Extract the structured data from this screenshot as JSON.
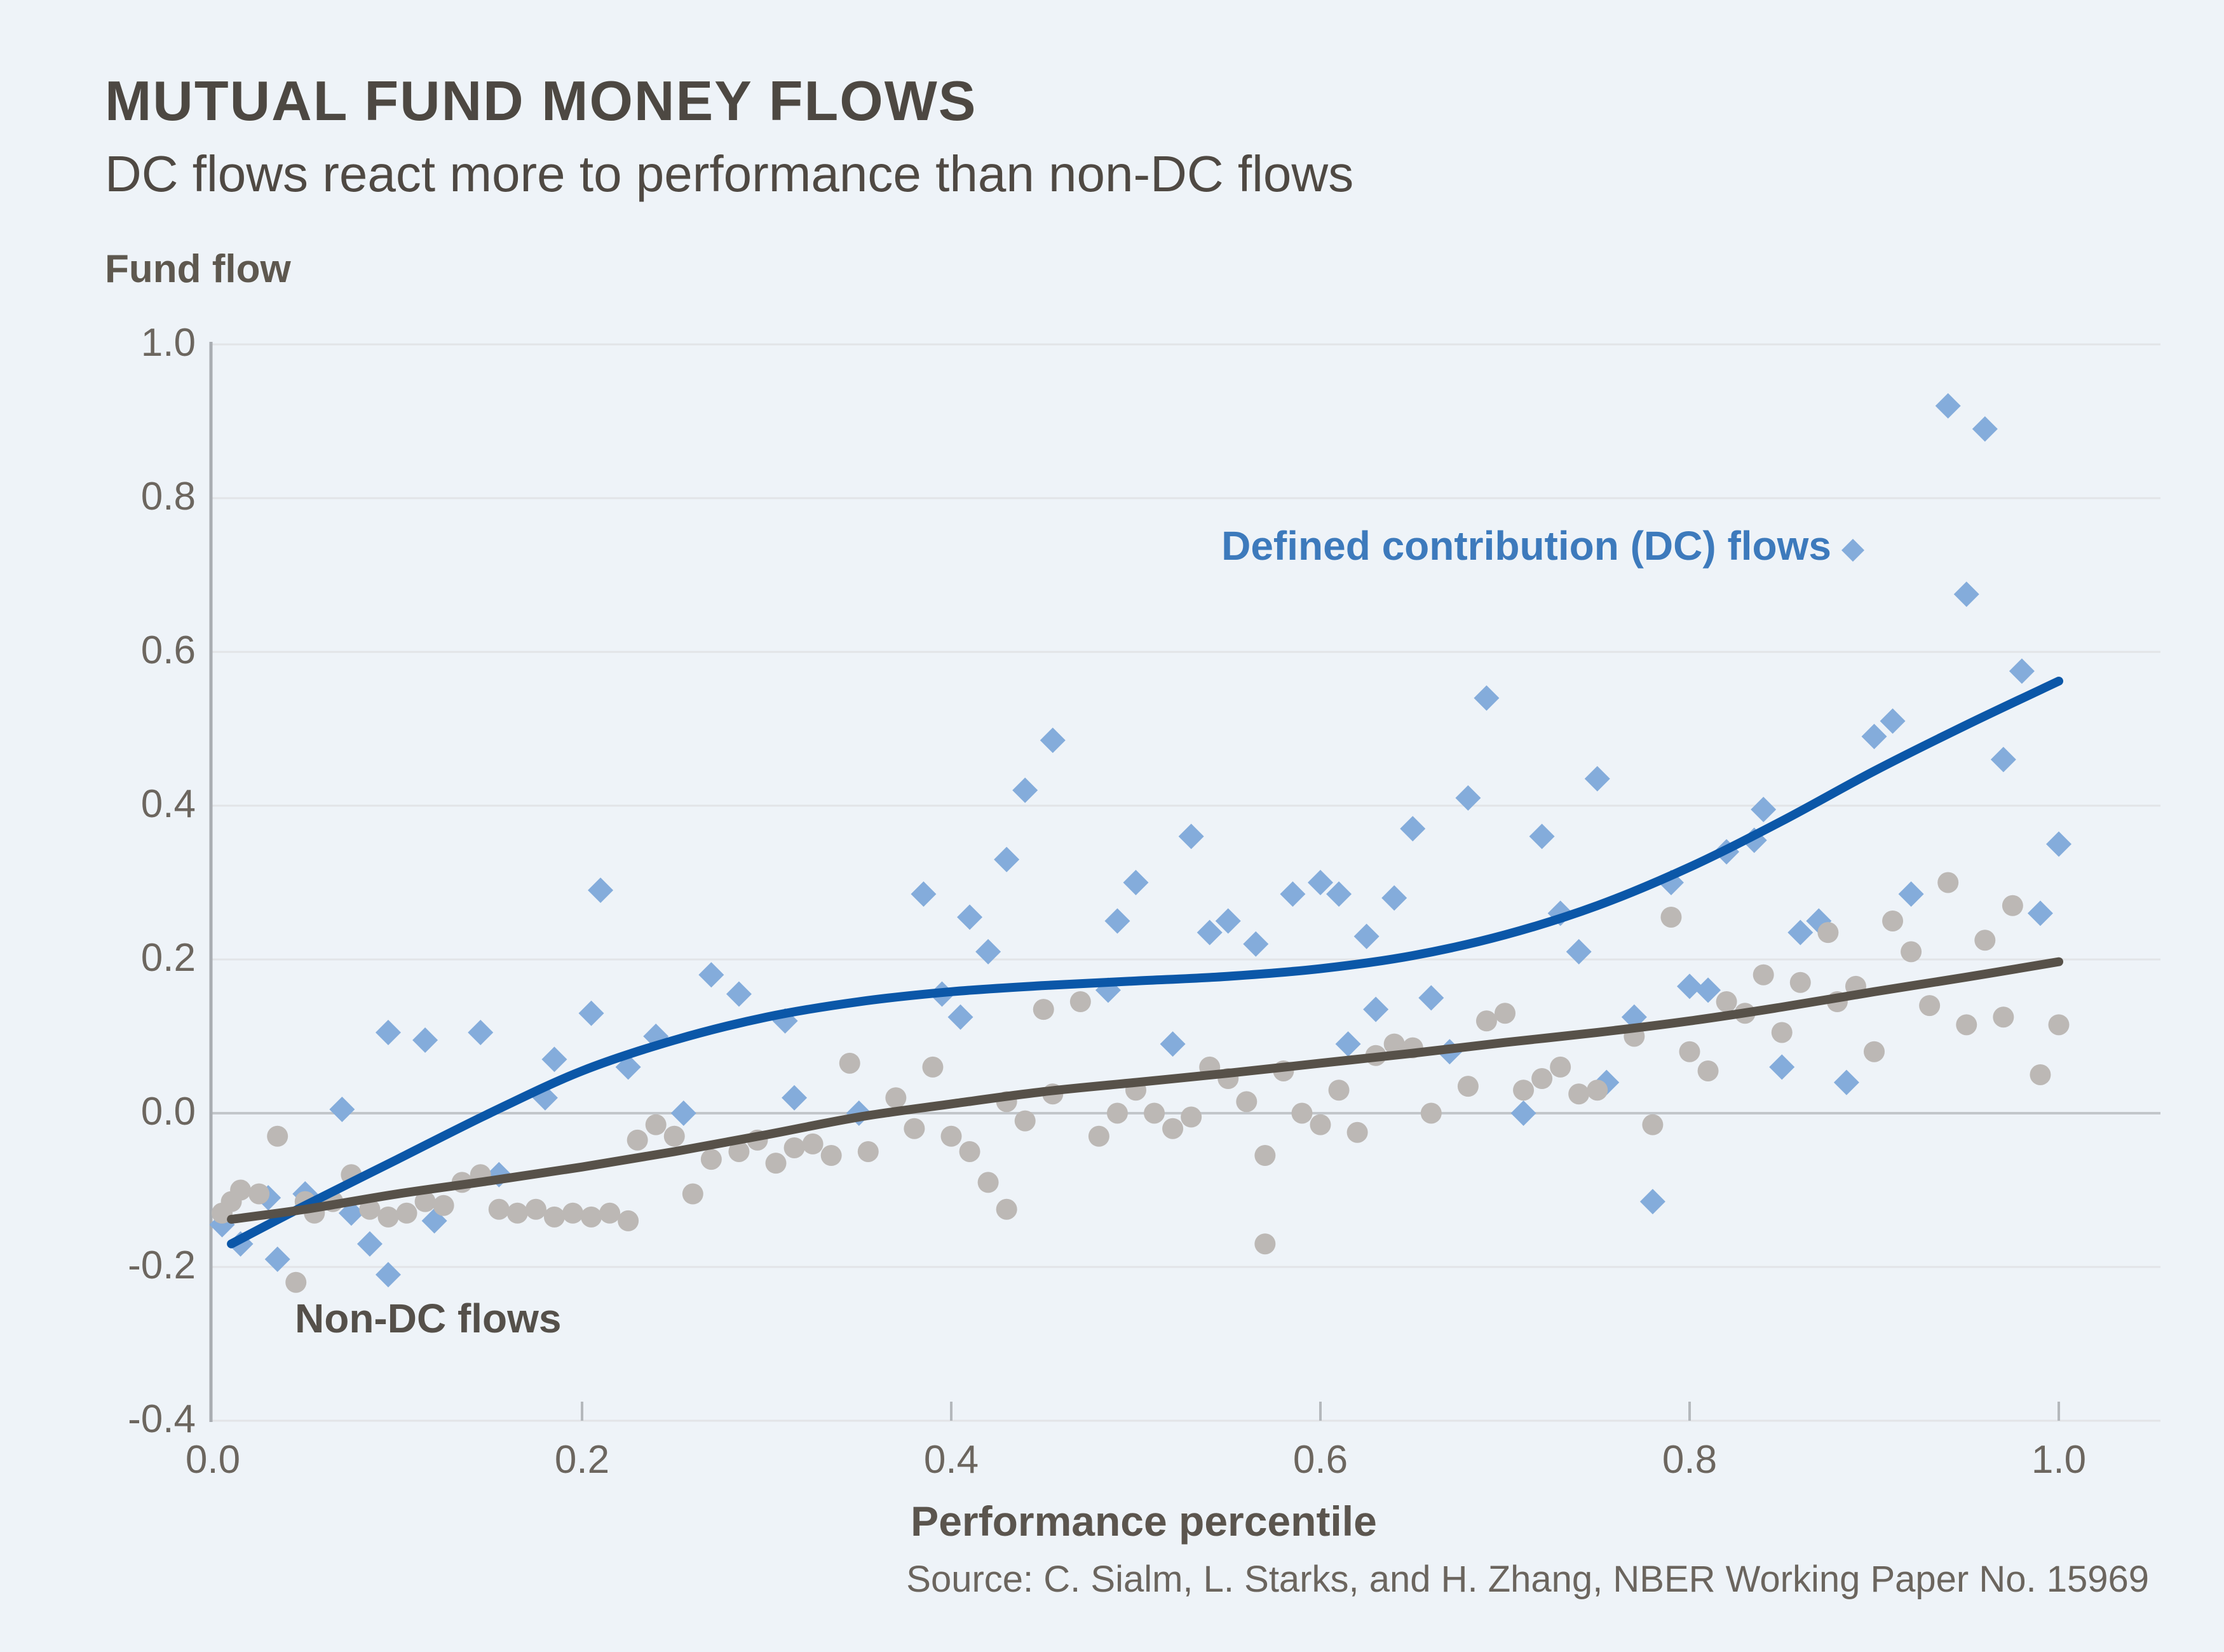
{
  "header": {
    "title": "MUTUAL FUND MONEY FLOWS",
    "subtitle": "DC flows react more to performance than non-DC flows"
  },
  "source_note": "Source: C. Sialm, L. Starks, and H. Zhang, NBER Working Paper No. 15969",
  "colors": {
    "background": "#eef3f8",
    "dc_marker": "#84acdb",
    "nondc_marker": "#bcb8b5",
    "dc_line": "#0b57a8",
    "nondc_line": "#575149",
    "gridline": "#e2e4e7",
    "zero_line": "#c2c6ca",
    "axis_line": "#a9adb2",
    "tick_mark": "#b4b8bc",
    "dc_label_text": "#3d7abc",
    "nondc_label_text": "#55504a"
  },
  "chart_data": {
    "type": "scatter",
    "title": "MUTUAL FUND MONEY FLOWS",
    "xlabel": "Performance percentile",
    "ylabel": "Fund flow",
    "xlim": [
      -0.01,
      1.055
    ],
    "ylim": [
      -0.4,
      1.0
    ],
    "grid": "horizontal",
    "legend_position": "inline-annotations",
    "x_ticks": {
      "values": [
        0.0,
        0.2,
        0.4,
        0.6,
        0.8,
        1.0
      ],
      "labels": [
        "0.0",
        "0.2",
        "0.4",
        "0.6",
        "0.8",
        "1.0"
      ]
    },
    "y_ticks": {
      "values": [
        1.0,
        0.8,
        0.6,
        0.4,
        0.2,
        0.0,
        -0.2,
        -0.4
      ],
      "labels": [
        "1.0",
        "0.8",
        "0.6",
        "0.4",
        "0.2",
        "0.0",
        "-0.2",
        "-0.4"
      ]
    },
    "annotations": [
      {
        "id": "dc",
        "text": "Defined contribution (DC) flows"
      },
      {
        "id": "nondc",
        "text": "Non-DC flows"
      }
    ],
    "series": [
      {
        "name": "Defined contribution (DC) flows",
        "kind": "scatter",
        "marker": "diamond",
        "points": [
          [
            0.005,
            -0.145
          ],
          [
            0.015,
            -0.17
          ],
          [
            0.03,
            -0.11
          ],
          [
            0.035,
            -0.19
          ],
          [
            0.05,
            -0.105
          ],
          [
            0.07,
            0.005
          ],
          [
            0.075,
            -0.13
          ],
          [
            0.085,
            -0.17
          ],
          [
            0.095,
            -0.21
          ],
          [
            0.095,
            0.105
          ],
          [
            0.115,
            0.095
          ],
          [
            0.12,
            -0.14
          ],
          [
            0.145,
            0.105
          ],
          [
            0.155,
            -0.08
          ],
          [
            0.18,
            0.02
          ],
          [
            0.185,
            0.07
          ],
          [
            0.205,
            0.13
          ],
          [
            0.21,
            0.29
          ],
          [
            0.225,
            0.06
          ],
          [
            0.24,
            0.1
          ],
          [
            0.255,
            0.0
          ],
          [
            0.27,
            0.18
          ],
          [
            0.285,
            0.155
          ],
          [
            0.31,
            0.12
          ],
          [
            0.315,
            0.02
          ],
          [
            0.35,
            0.0
          ],
          [
            0.385,
            0.285
          ],
          [
            0.395,
            0.155
          ],
          [
            0.405,
            0.125
          ],
          [
            0.41,
            0.255
          ],
          [
            0.42,
            0.21
          ],
          [
            0.43,
            0.33
          ],
          [
            0.44,
            0.42
          ],
          [
            0.455,
            0.485
          ],
          [
            0.485,
            0.16
          ],
          [
            0.49,
            0.25
          ],
          [
            0.5,
            0.3
          ],
          [
            0.52,
            0.09
          ],
          [
            0.53,
            0.36
          ],
          [
            0.54,
            0.235
          ],
          [
            0.55,
            0.25
          ],
          [
            0.565,
            0.22
          ],
          [
            0.585,
            0.285
          ],
          [
            0.6,
            0.3
          ],
          [
            0.61,
            0.285
          ],
          [
            0.615,
            0.09
          ],
          [
            0.625,
            0.23
          ],
          [
            0.63,
            0.135
          ],
          [
            0.64,
            0.28
          ],
          [
            0.65,
            0.37
          ],
          [
            0.66,
            0.15
          ],
          [
            0.67,
            0.08
          ],
          [
            0.68,
            0.41
          ],
          [
            0.69,
            0.54
          ],
          [
            0.71,
            0.0
          ],
          [
            0.72,
            0.36
          ],
          [
            0.73,
            0.26
          ],
          [
            0.74,
            0.21
          ],
          [
            0.75,
            0.435
          ],
          [
            0.755,
            0.04
          ],
          [
            0.77,
            0.125
          ],
          [
            0.78,
            -0.115
          ],
          [
            0.79,
            0.3
          ],
          [
            0.8,
            0.165
          ],
          [
            0.81,
            0.16
          ],
          [
            0.82,
            0.34
          ],
          [
            0.835,
            0.355
          ],
          [
            0.84,
            0.395
          ],
          [
            0.85,
            0.06
          ],
          [
            0.86,
            0.235
          ],
          [
            0.87,
            0.25
          ],
          [
            0.885,
            0.04
          ],
          [
            0.9,
            0.49
          ],
          [
            0.91,
            0.51
          ],
          [
            0.92,
            0.285
          ],
          [
            0.94,
            0.92
          ],
          [
            0.95,
            0.675
          ],
          [
            0.96,
            0.89
          ],
          [
            0.97,
            0.46
          ],
          [
            0.98,
            0.575
          ],
          [
            0.99,
            0.26
          ],
          [
            1.0,
            0.35
          ]
        ]
      },
      {
        "name": "Non-DC flows",
        "kind": "scatter",
        "marker": "circle",
        "points": [
          [
            0.005,
            -0.13
          ],
          [
            0.01,
            -0.115
          ],
          [
            0.015,
            -0.1
          ],
          [
            0.025,
            -0.105
          ],
          [
            0.035,
            -0.03
          ],
          [
            0.045,
            -0.22
          ],
          [
            0.05,
            -0.115
          ],
          [
            0.055,
            -0.13
          ],
          [
            0.065,
            -0.115
          ],
          [
            0.075,
            -0.08
          ],
          [
            0.085,
            -0.125
          ],
          [
            0.095,
            -0.135
          ],
          [
            0.105,
            -0.13
          ],
          [
            0.115,
            -0.115
          ],
          [
            0.125,
            -0.12
          ],
          [
            0.135,
            -0.09
          ],
          [
            0.145,
            -0.08
          ],
          [
            0.155,
            -0.125
          ],
          [
            0.165,
            -0.13
          ],
          [
            0.175,
            -0.125
          ],
          [
            0.185,
            -0.135
          ],
          [
            0.195,
            -0.13
          ],
          [
            0.205,
            -0.135
          ],
          [
            0.215,
            -0.13
          ],
          [
            0.225,
            -0.14
          ],
          [
            0.23,
            -0.035
          ],
          [
            0.24,
            -0.015
          ],
          [
            0.25,
            -0.03
          ],
          [
            0.26,
            -0.105
          ],
          [
            0.27,
            -0.06
          ],
          [
            0.285,
            -0.05
          ],
          [
            0.295,
            -0.035
          ],
          [
            0.305,
            -0.065
          ],
          [
            0.315,
            -0.045
          ],
          [
            0.325,
            -0.04
          ],
          [
            0.335,
            -0.055
          ],
          [
            0.345,
            0.065
          ],
          [
            0.355,
            -0.05
          ],
          [
            0.37,
            0.02
          ],
          [
            0.38,
            -0.02
          ],
          [
            0.39,
            0.06
          ],
          [
            0.4,
            -0.03
          ],
          [
            0.41,
            -0.05
          ],
          [
            0.42,
            -0.09
          ],
          [
            0.43,
            -0.125
          ],
          [
            0.43,
            0.015
          ],
          [
            0.44,
            -0.01
          ],
          [
            0.45,
            0.135
          ],
          [
            0.455,
            0.025
          ],
          [
            0.47,
            0.145
          ],
          [
            0.48,
            -0.03
          ],
          [
            0.49,
            0.0
          ],
          [
            0.5,
            0.03
          ],
          [
            0.51,
            0.0
          ],
          [
            0.52,
            -0.02
          ],
          [
            0.53,
            -0.005
          ],
          [
            0.54,
            0.06
          ],
          [
            0.55,
            0.045
          ],
          [
            0.56,
            0.015
          ],
          [
            0.57,
            -0.055
          ],
          [
            0.57,
            -0.17
          ],
          [
            0.58,
            0.055
          ],
          [
            0.59,
            0.0
          ],
          [
            0.6,
            -0.015
          ],
          [
            0.61,
            0.03
          ],
          [
            0.62,
            -0.025
          ],
          [
            0.63,
            0.075
          ],
          [
            0.64,
            0.09
          ],
          [
            0.65,
            0.085
          ],
          [
            0.66,
            0.0
          ],
          [
            0.68,
            0.035
          ],
          [
            0.69,
            0.12
          ],
          [
            0.7,
            0.13
          ],
          [
            0.71,
            0.03
          ],
          [
            0.72,
            0.045
          ],
          [
            0.73,
            0.06
          ],
          [
            0.74,
            0.025
          ],
          [
            0.75,
            0.03
          ],
          [
            0.77,
            0.1
          ],
          [
            0.78,
            -0.015
          ],
          [
            0.79,
            0.255
          ],
          [
            0.8,
            0.08
          ],
          [
            0.81,
            0.055
          ],
          [
            0.82,
            0.145
          ],
          [
            0.83,
            0.13
          ],
          [
            0.84,
            0.18
          ],
          [
            0.85,
            0.105
          ],
          [
            0.86,
            0.17
          ],
          [
            0.875,
            0.235
          ],
          [
            0.88,
            0.145
          ],
          [
            0.89,
            0.165
          ],
          [
            0.9,
            0.08
          ],
          [
            0.91,
            0.25
          ],
          [
            0.92,
            0.21
          ],
          [
            0.93,
            0.14
          ],
          [
            0.94,
            0.3
          ],
          [
            0.95,
            0.115
          ],
          [
            0.96,
            0.225
          ],
          [
            0.97,
            0.125
          ],
          [
            0.975,
            0.27
          ],
          [
            0.99,
            0.05
          ],
          [
            1.0,
            0.115
          ]
        ]
      },
      {
        "name": "DC flows trend",
        "kind": "line",
        "points": [
          [
            0.01,
            -0.17
          ],
          [
            0.05,
            -0.12
          ],
          [
            0.1,
            -0.06
          ],
          [
            0.15,
            0.0
          ],
          [
            0.2,
            0.055
          ],
          [
            0.25,
            0.095
          ],
          [
            0.3,
            0.125
          ],
          [
            0.35,
            0.145
          ],
          [
            0.4,
            0.158
          ],
          [
            0.45,
            0.166
          ],
          [
            0.5,
            0.172
          ],
          [
            0.55,
            0.178
          ],
          [
            0.6,
            0.188
          ],
          [
            0.65,
            0.205
          ],
          [
            0.7,
            0.232
          ],
          [
            0.75,
            0.27
          ],
          [
            0.8,
            0.32
          ],
          [
            0.85,
            0.38
          ],
          [
            0.9,
            0.445
          ],
          [
            0.95,
            0.505
          ],
          [
            1.0,
            0.562
          ]
        ]
      },
      {
        "name": "Non-DC flows trend",
        "kind": "line",
        "points": [
          [
            0.01,
            -0.138
          ],
          [
            0.05,
            -0.125
          ],
          [
            0.1,
            -0.105
          ],
          [
            0.15,
            -0.088
          ],
          [
            0.2,
            -0.07
          ],
          [
            0.25,
            -0.05
          ],
          [
            0.3,
            -0.028
          ],
          [
            0.35,
            -0.005
          ],
          [
            0.4,
            0.012
          ],
          [
            0.45,
            0.028
          ],
          [
            0.5,
            0.04
          ],
          [
            0.55,
            0.052
          ],
          [
            0.6,
            0.065
          ],
          [
            0.65,
            0.078
          ],
          [
            0.7,
            0.092
          ],
          [
            0.75,
            0.105
          ],
          [
            0.8,
            0.12
          ],
          [
            0.85,
            0.138
          ],
          [
            0.9,
            0.158
          ],
          [
            0.95,
            0.177
          ],
          [
            1.0,
            0.197
          ]
        ]
      }
    ]
  }
}
